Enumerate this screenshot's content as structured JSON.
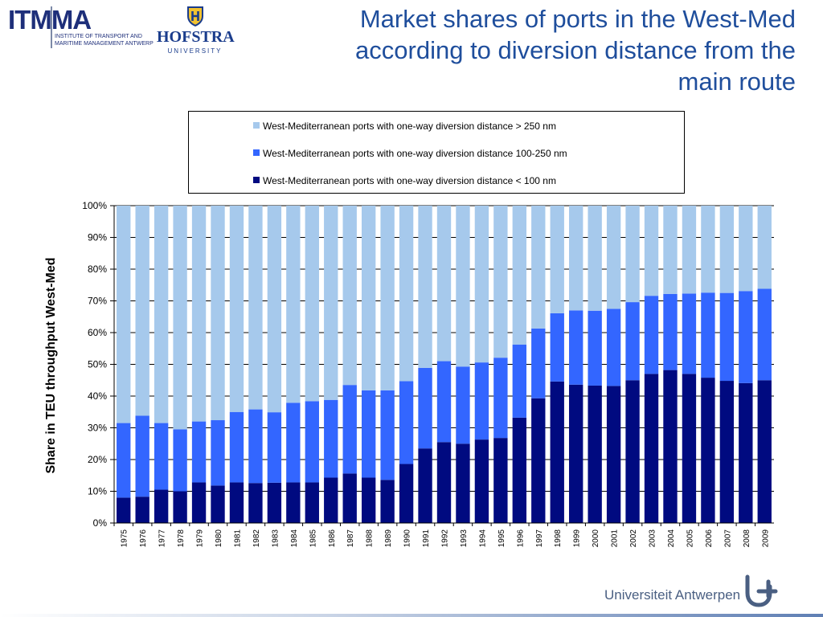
{
  "header": {
    "itmma_logo": {
      "word": "ITMMA",
      "line1": "INSTITUTE OF TRANSPORT AND",
      "line2": "MARITIME MANAGEMENT ANTWERP"
    },
    "hofstra_logo": {
      "name": "HOFSTRA",
      "sub": "UNIVERSITY"
    },
    "title_line1": "Market shares of ports in the West-Med",
    "title_line2": "according to diversion distance from the",
    "title_line3": "main route"
  },
  "footer": {
    "university": "Universiteit Antwerpen"
  },
  "colors": {
    "under_100": "#000a80",
    "from_100_250": "#3366ff",
    "over_250": "#a6c9ec",
    "title": "#1f4e9c"
  },
  "icons": [
    "ua-logo-icon",
    "hofstra-shield-icon"
  ],
  "chart_data": {
    "type": "bar",
    "stacked": true,
    "ylabel": "Share in TEU throughput West-Med",
    "xlabel": "",
    "ylim": [
      0,
      100
    ],
    "yticks": [
      "0%",
      "10%",
      "20%",
      "30%",
      "40%",
      "50%",
      "60%",
      "70%",
      "80%",
      "90%",
      "100%"
    ],
    "grid": true,
    "legend_placement": "top",
    "categories": [
      "1975",
      "1976",
      "1977",
      "1978",
      "1979",
      "1980",
      "1981",
      "1982",
      "1983",
      "1984",
      "1985",
      "1986",
      "1987",
      "1988",
      "1989",
      "1990",
      "1991",
      "1992",
      "1993",
      "1994",
      "1995",
      "1996",
      "1997",
      "1998",
      "1999",
      "2000",
      "2001",
      "2002",
      "2003",
      "2004",
      "2005",
      "2006",
      "2007",
      "2008",
      "2009"
    ],
    "series": [
      {
        "name": "West-Mediterranean ports with one-way diversion distance < 100 nm",
        "color": "#000a80",
        "values": [
          8,
          8.3,
          10.5,
          10,
          12.8,
          11.8,
          12.8,
          12.6,
          12.7,
          12.8,
          12.8,
          14.3,
          15.6,
          14.3,
          13.6,
          18.6,
          23.5,
          25.5,
          25,
          26.3,
          26.8,
          33.2,
          39.3,
          44.6,
          43.6,
          43.3,
          43.2,
          45,
          47,
          48.2,
          47,
          45.8,
          44.8,
          44.1,
          45
        ]
      },
      {
        "name": "West-Mediterranean ports with one-way diversion distance 100-250 nm",
        "color": "#3366ff",
        "values": [
          23.5,
          25.5,
          21,
          19.5,
          19.2,
          20.6,
          22.2,
          23.2,
          22.2,
          25.1,
          25.6,
          24.5,
          27.9,
          27.5,
          28.2,
          26.1,
          25.4,
          25.5,
          24.3,
          24.3,
          25.3,
          23,
          22,
          21.5,
          23.4,
          23.6,
          24.3,
          24.6,
          24.6,
          24,
          25.3,
          26.8,
          27.7,
          29,
          28.8
        ]
      },
      {
        "name": "West-Mediterranean ports with one-way diversion distance > 250 nm",
        "color": "#a6c9ec",
        "values": [
          68.5,
          66.2,
          68.5,
          70.5,
          68,
          67.6,
          65,
          64.2,
          65.1,
          62.1,
          61.6,
          61.2,
          56.5,
          58.2,
          58.2,
          55.3,
          51.1,
          49,
          50.7,
          49.4,
          47.9,
          43.8,
          38.7,
          33.9,
          33,
          33.1,
          32.5,
          30.4,
          28.4,
          27.8,
          27.7,
          27.4,
          27.5,
          26.9,
          26.2
        ]
      }
    ]
  }
}
